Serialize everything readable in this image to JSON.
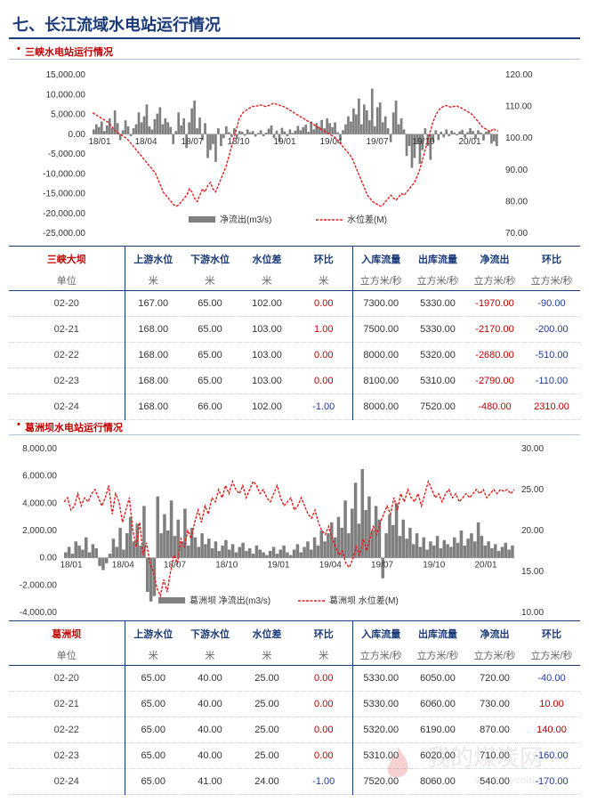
{
  "page": {
    "title": "七、长江流域水电站运行情况",
    "watermark_cn": "我的煤炭网",
    "watermark_url": "www.mycoal.cn"
  },
  "sections": [
    {
      "id": "sanxia",
      "title": "三峡水电站运行情况",
      "table": {
        "name": "三峡大坝",
        "unit_label": "单位",
        "headers": [
          "上游水位",
          "下游水位",
          "水位差",
          "环比",
          "入库流量",
          "出库流量",
          "净流出",
          "环比"
        ],
        "units": [
          "米",
          "米",
          "米",
          "米",
          "立方米/秒",
          "立方米/秒",
          "立方米/秒",
          "立方米/秒"
        ],
        "rows": [
          {
            "date": "02-20",
            "up": "167.00",
            "down": "65.00",
            "diff": "102.00",
            "chg": "0.00",
            "inflow": "7300.00",
            "outflow": "5330.00",
            "net": "-1970.00",
            "netchg": "-90.00"
          },
          {
            "date": "02-21",
            "up": "168.00",
            "down": "65.00",
            "diff": "103.00",
            "chg": "1.00",
            "inflow": "7500.00",
            "outflow": "5330.00",
            "net": "-2170.00",
            "netchg": "-200.00"
          },
          {
            "date": "02-22",
            "up": "168.00",
            "down": "65.00",
            "diff": "103.00",
            "chg": "0.00",
            "inflow": "8000.00",
            "outflow": "5320.00",
            "net": "-2680.00",
            "netchg": "-510.00"
          },
          {
            "date": "02-23",
            "up": "168.00",
            "down": "65.00",
            "diff": "103.00",
            "chg": "0.00",
            "inflow": "8100.00",
            "outflow": "5310.00",
            "net": "-2790.00",
            "netchg": "-110.00"
          },
          {
            "date": "02-24",
            "up": "168.00",
            "down": "66.00",
            "diff": "102.00",
            "chg": "-1.00",
            "inflow": "8000.00",
            "outflow": "7520.00",
            "net": "-480.00",
            "netchg": "2310.00"
          }
        ]
      }
    },
    {
      "id": "gezhouba",
      "title": "葛洲坝水电站运行情况",
      "table": {
        "name": "葛洲坝",
        "unit_label": "单位",
        "headers": [
          "上游水位",
          "下游水位",
          "水位差",
          "环比",
          "入库流量",
          "出库流量",
          "净流出",
          "环比"
        ],
        "units": [
          "米",
          "米",
          "米",
          "米",
          "立方米/秒",
          "立方米/秒",
          "立方米/秒",
          "立方米/秒"
        ],
        "rows": [
          {
            "date": "02-20",
            "up": "65.00",
            "down": "40.00",
            "diff": "25.00",
            "chg": "0.00",
            "inflow": "5330.00",
            "outflow": "6050.00",
            "net": "720.00",
            "netchg": "-40.00"
          },
          {
            "date": "02-21",
            "up": "65.00",
            "down": "40.00",
            "diff": "25.00",
            "chg": "0.00",
            "inflow": "5330.00",
            "outflow": "6060.00",
            "net": "730.00",
            "netchg": "10.00"
          },
          {
            "date": "02-22",
            "up": "65.00",
            "down": "40.00",
            "diff": "25.00",
            "chg": "0.00",
            "inflow": "5320.00",
            "outflow": "6190.00",
            "net": "870.00",
            "netchg": "140.00"
          },
          {
            "date": "02-23",
            "up": "65.00",
            "down": "40.00",
            "diff": "25.00",
            "chg": "0.00",
            "inflow": "5310.00",
            "outflow": "6020.00",
            "net": "710.00",
            "netchg": "-160.00"
          },
          {
            "date": "02-24",
            "up": "65.00",
            "down": "41.00",
            "diff": "24.00",
            "chg": "-1.00",
            "inflow": "7520.00",
            "outflow": "8060.00",
            "net": "540.00",
            "netchg": "-170.00"
          }
        ]
      }
    }
  ],
  "chart_data": [
    {
      "type": "bar+line",
      "title": "",
      "x_labels": [
        "18/01",
        "18/04",
        "18/07",
        "18/10",
        "19/01",
        "19/04",
        "19/07",
        "19/10",
        "20/01"
      ],
      "y_left_ticks": [
        "15,000.00",
        "10,000.00",
        "5,000.00",
        "0.00",
        "-5,000.00",
        "-10,000.00",
        "-15,000.00",
        "-20,000.00",
        "-25,000.00"
      ],
      "y_right_ticks": [
        "120.00",
        "110.00",
        "100.00",
        "90.00",
        "80.00",
        "70.00"
      ],
      "ylim_left": [
        -25000,
        15000
      ],
      "ylim_right": [
        70,
        120
      ],
      "legend_position": "bottom",
      "series": [
        {
          "name": "净流出(m3/s)",
          "kind": "bar",
          "axis": "left",
          "color": "#7f7f7f",
          "values": [
            1200,
            2500,
            1800,
            3200,
            800,
            2200,
            4000,
            1500,
            6000,
            2800,
            -1500,
            1000,
            3500,
            2000,
            -500,
            1500,
            2500,
            5500,
            3000,
            4500,
            7500,
            2000,
            1200,
            3800,
            5200,
            6800,
            2500,
            4000,
            3000,
            1800,
            -2500,
            800,
            5500,
            2200,
            4000,
            -3500,
            3000,
            6500,
            8500,
            1500,
            4200,
            -1500,
            2800,
            -6000,
            -4000,
            -2500,
            -7000,
            1500,
            -3000,
            -1000,
            2000,
            500,
            -800,
            1500,
            -1200,
            800,
            600,
            -400,
            1200,
            500,
            800,
            -600,
            300,
            1000,
            -500,
            400,
            1400,
            2200,
            -1000,
            900,
            -2000,
            1600,
            700,
            -500,
            1200,
            300,
            900,
            2100,
            1000,
            1800,
            2400,
            600,
            3200,
            1200,
            2800,
            1900,
            3600,
            1500,
            4000,
            2800,
            1800,
            3000,
            500,
            -1500,
            1000,
            2500,
            4500,
            3200,
            6500,
            5000,
            9000,
            2500,
            7500,
            6000,
            3500,
            11500,
            2000,
            6800,
            8000,
            3000,
            4500,
            1500,
            -2000,
            5500,
            8500,
            2500,
            4000,
            1200,
            -5500,
            -3000,
            -8500,
            -6000,
            -2500,
            -7500,
            -4000,
            1500,
            -3000,
            -6500,
            -2000,
            1000,
            -1500,
            600,
            -800,
            1200,
            -500,
            900,
            400,
            -300,
            700,
            1100,
            -900,
            500,
            1500,
            800,
            -1200,
            1000,
            400,
            -1600,
            600,
            900,
            -2400,
            -1800,
            -3000
          ]
        },
        {
          "name": "水位差(M)",
          "kind": "line",
          "axis": "right",
          "color": "#e02020",
          "values": [
            108,
            107.5,
            107,
            106.5,
            106,
            105.5,
            105,
            104,
            103,
            102,
            101.5,
            101,
            100.5,
            100,
            99,
            98,
            97,
            96,
            95,
            94,
            93,
            92,
            91,
            90,
            89,
            87,
            85,
            83,
            82,
            81,
            80,
            79,
            78.5,
            79,
            80,
            81,
            82,
            84,
            83,
            81,
            80,
            82,
            84,
            83,
            85,
            86,
            84,
            83,
            85,
            87,
            89,
            91,
            94,
            97,
            100,
            103,
            106,
            107.5,
            108.5,
            109,
            109.5,
            110,
            110,
            110.2,
            110.5,
            110.3,
            110,
            110.2,
            110.5,
            111,
            110.8,
            110.5,
            110.2,
            110,
            109.5,
            109,
            108.5,
            108,
            107.5,
            107,
            106.5,
            106,
            105.5,
            105,
            104.5,
            104,
            103.5,
            103,
            102.5,
            102,
            101.5,
            101,
            100.5,
            100,
            99,
            98,
            97,
            96,
            95,
            94,
            92,
            90,
            88,
            86,
            84,
            82,
            81,
            80,
            79.5,
            79,
            78.5,
            79,
            80,
            81,
            82,
            81,
            80.5,
            81.5,
            82.5,
            82,
            83,
            84,
            85,
            86,
            88,
            90,
            93,
            96,
            99,
            102,
            105,
            107,
            108.5,
            109.5,
            110,
            110.3,
            110,
            109.8,
            110,
            110.2,
            109.8,
            109.5,
            109,
            108.5,
            108,
            107.5,
            106.5,
            105.5,
            104.5,
            103.5,
            103,
            102.5,
            102,
            103,
            102.5,
            102.2
          ]
        }
      ]
    },
    {
      "type": "bar+line",
      "title": "",
      "x_labels": [
        "18/01",
        "18/04",
        "18/07",
        "18/10",
        "19/01",
        "19/04",
        "19/07",
        "19/10",
        "20/01"
      ],
      "y_left_ticks": [
        "8,000.00",
        "6,000.00",
        "4,000.00",
        "2,000.00",
        "0.00",
        "-2,000.00",
        "-4,000.00"
      ],
      "y_right_ticks": [
        "30.00",
        "25.00",
        "20.00",
        "15.00",
        "10.00"
      ],
      "ylim_left": [
        -4000,
        8000
      ],
      "ylim_right": [
        10,
        30
      ],
      "legend_position": "bottom",
      "series": [
        {
          "name": "葛洲坝 净流出(m3/s)",
          "kind": "bar",
          "axis": "left",
          "color": "#7f7f7f",
          "values": [
            400,
            800,
            300,
            1200,
            900,
            600,
            1500,
            400,
            1000,
            700,
            -600,
            -900,
            -400,
            300,
            1400,
            800,
            2200,
            600,
            1800,
            3000,
            1200,
            2500,
            900,
            3800,
            -2500,
            -3200,
            -2800,
            4500,
            1800,
            3200,
            2000,
            4200,
            1600,
            2800,
            1200,
            3600,
            900,
            2200,
            1500,
            800,
            1800,
            1000,
            1400,
            700,
            1200,
            500,
            900,
            1300,
            600,
            1000,
            400,
            800,
            1100,
            500,
            700,
            300,
            900,
            600,
            400,
            200,
            500,
            800,
            300,
            600,
            900,
            400,
            200,
            600,
            1000,
            400,
            800,
            1200,
            600,
            1500,
            900,
            2000,
            1200,
            1800,
            2600,
            1500,
            3000,
            2200,
            4200,
            1800,
            3600,
            5500,
            2500,
            6500,
            3500,
            4500,
            2000,
            3800,
            2800,
            -1500,
            1800,
            3200,
            2400,
            4000,
            1600,
            2800,
            1400,
            2200,
            1000,
            1800,
            800,
            1500,
            600,
            1200,
            900,
            1600,
            700,
            1300,
            1000,
            800,
            1500,
            1100,
            2000,
            900,
            1400,
            1800,
            1200,
            2600,
            1600,
            900,
            1200,
            700,
            1000,
            500,
            800,
            1100,
            600,
            900
          ]
        },
        {
          "name": "葛洲坝 水位差(M)",
          "kind": "line",
          "axis": "right",
          "color": "#e02020",
          "values": [
            23.5,
            24,
            22.5,
            23,
            24.5,
            23,
            24,
            23.5,
            24.5,
            25,
            24,
            23,
            24,
            25.5,
            22,
            24.5,
            23.5,
            21,
            22.5,
            24,
            20,
            18,
            21,
            17,
            18.5,
            16,
            15,
            13,
            12,
            14,
            12.5,
            15,
            17,
            16,
            19,
            18,
            20,
            19,
            21,
            22.5,
            21,
            23,
            22,
            24,
            23.5,
            25,
            24,
            25.5,
            24.5,
            26,
            25,
            24.5,
            25.5,
            24,
            25,
            26,
            25.5,
            24.5,
            25,
            24,
            23.5,
            24.5,
            25.5,
            24,
            23,
            23.5,
            24,
            22.5,
            23,
            24,
            23,
            22,
            21.5,
            22.5,
            21,
            20,
            19.5,
            20.5,
            19,
            18,
            17,
            17.5,
            16,
            15.5,
            16.5,
            18,
            17,
            19,
            17.5,
            19,
            20.5,
            19.5,
            21,
            22,
            23,
            22,
            24,
            22.5,
            24.5,
            23.5,
            25,
            24,
            23.5,
            24.5,
            23,
            24.5,
            26,
            25,
            24,
            24.5,
            23.5,
            24.5,
            25,
            24,
            24.5,
            23.5,
            24,
            24.5,
            24,
            24.5,
            25,
            24.5,
            25,
            24,
            24.5,
            25,
            24.5,
            25,
            24.8,
            25,
            24.5,
            25
          ]
        }
      ]
    }
  ]
}
